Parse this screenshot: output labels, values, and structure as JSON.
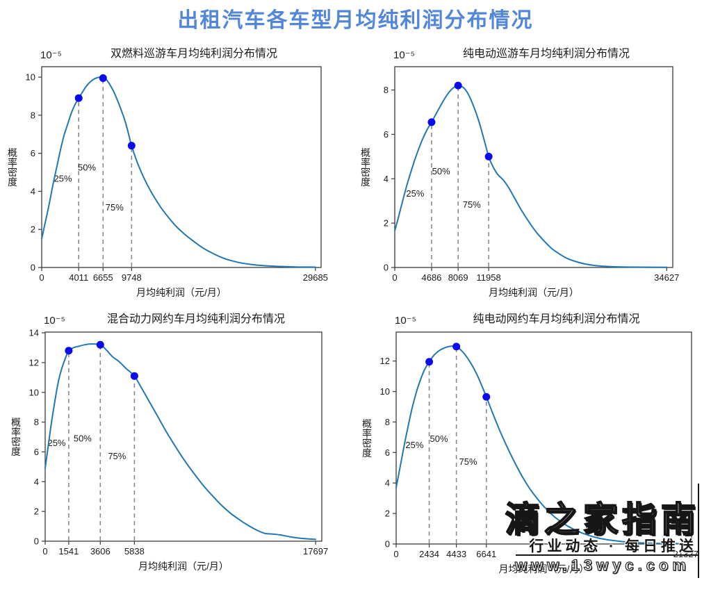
{
  "page": {
    "title": "出租汽车各车型月均纯利润分布情况",
    "title_color": "#5286d8"
  },
  "watermark": {
    "brand": "滴之家指南",
    "tagline": "行业动态 · 每日推送",
    "url": "www.13wyc.com"
  },
  "colors": {
    "curve": "#1f77b4",
    "marker": "#0b0bee",
    "dashed": "#8a8a8a",
    "axis": "#3a3a3a",
    "text": "#1a1a1a"
  },
  "chart_data": [
    {
      "id": "dual-fuel-cruise-taxi",
      "type": "line",
      "title": "双燃料巡游车月均纯利润分布情况",
      "offset_text": "10⁻⁵",
      "xlabel": "月均纯利润（元/月）",
      "ylabel": "概率密度",
      "xticks": [
        0,
        4011,
        6655,
        9748,
        29685
      ],
      "yticks": [
        0,
        2,
        4,
        6,
        8,
        10
      ],
      "xlim": [
        0,
        30300
      ],
      "ylim": [
        0,
        10.55
      ],
      "quartiles": [
        {
          "label": "25%",
          "x": 4011,
          "y": 8.9,
          "label_x": 2300,
          "label_y": 4.5
        },
        {
          "label": "50%",
          "x": 6655,
          "y": 9.95,
          "label_x": 4900,
          "label_y": 5.1
        },
        {
          "label": "75%",
          "x": 9748,
          "y": 6.4,
          "label_x": 7900,
          "label_y": 3.0
        }
      ],
      "curve": [
        [
          0,
          1.5
        ],
        [
          400,
          2.4
        ],
        [
          800,
          3.3
        ],
        [
          1200,
          4.3
        ],
        [
          1600,
          5.2
        ],
        [
          2000,
          6.1
        ],
        [
          2400,
          6.9
        ],
        [
          2800,
          7.5
        ],
        [
          3200,
          8.1
        ],
        [
          3600,
          8.55
        ],
        [
          4011,
          8.9
        ],
        [
          4400,
          9.2
        ],
        [
          4800,
          9.5
        ],
        [
          5200,
          9.72
        ],
        [
          5600,
          9.88
        ],
        [
          6000,
          9.97
        ],
        [
          6400,
          10.0
        ],
        [
          6655,
          9.97
        ],
        [
          7000,
          9.88
        ],
        [
          7400,
          9.6
        ],
        [
          7800,
          9.25
        ],
        [
          8200,
          8.8
        ],
        [
          8600,
          8.3
        ],
        [
          9100,
          7.6
        ],
        [
          9748,
          6.4
        ],
        [
          10300,
          5.6
        ],
        [
          10900,
          4.9
        ],
        [
          11500,
          4.3
        ],
        [
          12200,
          3.7
        ],
        [
          13000,
          3.1
        ],
        [
          13800,
          2.6
        ],
        [
          14600,
          2.15
        ],
        [
          15500,
          1.75
        ],
        [
          16400,
          1.4
        ],
        [
          17400,
          1.05
        ],
        [
          18400,
          0.78
        ],
        [
          19400,
          0.55
        ],
        [
          20400,
          0.38
        ],
        [
          21500,
          0.25
        ],
        [
          22700,
          0.16
        ],
        [
          24000,
          0.1
        ],
        [
          25500,
          0.06
        ],
        [
          27500,
          0.03
        ],
        [
          29685,
          0.02
        ]
      ]
    },
    {
      "id": "electric-cruise-taxi",
      "type": "line",
      "title": "纯电动巡游车月均纯利润分布情况",
      "offset_text": "10⁻⁵",
      "xlabel": "月均纯利润（元/月）",
      "ylabel": "概率密度",
      "xticks": [
        0,
        4686,
        8069,
        11958,
        34627
      ],
      "yticks": [
        0,
        2,
        4,
        6,
        8
      ],
      "xlim": [
        0,
        35400
      ],
      "ylim": [
        0,
        9.05
      ],
      "quartiles": [
        {
          "label": "25%",
          "x": 4686,
          "y": 6.55,
          "label_x": 2600,
          "label_y": 3.2
        },
        {
          "label": "50%",
          "x": 8069,
          "y": 8.2,
          "label_x": 5900,
          "label_y": 4.2
        },
        {
          "label": "75%",
          "x": 11958,
          "y": 5.0,
          "label_x": 9800,
          "label_y": 2.7
        }
      ],
      "curve": [
        [
          0,
          1.65
        ],
        [
          500,
          2.3
        ],
        [
          1000,
          3.0
        ],
        [
          1500,
          3.65
        ],
        [
          2000,
          4.25
        ],
        [
          2500,
          4.8
        ],
        [
          3000,
          5.3
        ],
        [
          3500,
          5.75
        ],
        [
          4100,
          6.2
        ],
        [
          4686,
          6.55
        ],
        [
          5300,
          6.95
        ],
        [
          6000,
          7.4
        ],
        [
          6700,
          7.8
        ],
        [
          7400,
          8.08
        ],
        [
          8069,
          8.2
        ],
        [
          8700,
          8.12
        ],
        [
          9300,
          7.85
        ],
        [
          10000,
          7.3
        ],
        [
          10700,
          6.6
        ],
        [
          11300,
          5.85
        ],
        [
          11958,
          5.0
        ],
        [
          12500,
          4.55
        ],
        [
          13100,
          4.2
        ],
        [
          13800,
          3.95
        ],
        [
          14500,
          3.6
        ],
        [
          15300,
          3.1
        ],
        [
          16100,
          2.6
        ],
        [
          17000,
          2.1
        ],
        [
          18000,
          1.6
        ],
        [
          19000,
          1.2
        ],
        [
          20000,
          0.85
        ],
        [
          21000,
          0.6
        ],
        [
          22000,
          0.4
        ],
        [
          23200,
          0.25
        ],
        [
          24500,
          0.14
        ],
        [
          26000,
          0.07
        ],
        [
          28000,
          0.03
        ],
        [
          31000,
          0.015
        ],
        [
          34627,
          0.01
        ]
      ]
    },
    {
      "id": "hybrid-ride-hailing-car",
      "type": "line",
      "title": "混合动力网约车月均纯利润分布情况",
      "offset_text": "10⁻⁵",
      "xlabel": "月均纯利润（元/月）",
      "ylabel": "概率密度",
      "xticks": [
        0,
        1541,
        3606,
        5838,
        17697
      ],
      "yticks": [
        0,
        2,
        4,
        6,
        8,
        10,
        12,
        14
      ],
      "xlim": [
        0,
        18100
      ],
      "ylim": [
        0,
        14.05
      ],
      "quartiles": [
        {
          "label": "25%",
          "x": 1541,
          "y": 12.8,
          "label_x": 750,
          "label_y": 6.4
        },
        {
          "label": "50%",
          "x": 3606,
          "y": 13.2,
          "label_x": 2450,
          "label_y": 6.7
        },
        {
          "label": "75%",
          "x": 5838,
          "y": 11.1,
          "label_x": 4700,
          "label_y": 5.5
        }
      ],
      "curve": [
        [
          0,
          4.9
        ],
        [
          200,
          6.4
        ],
        [
          400,
          7.9
        ],
        [
          600,
          9.2
        ],
        [
          800,
          10.4
        ],
        [
          1000,
          11.3
        ],
        [
          1250,
          12.1
        ],
        [
          1541,
          12.8
        ],
        [
          1850,
          13.0
        ],
        [
          2200,
          13.1
        ],
        [
          2600,
          13.2
        ],
        [
          3000,
          13.25
        ],
        [
          3606,
          13.2
        ],
        [
          4000,
          12.85
        ],
        [
          4400,
          12.4
        ],
        [
          4800,
          12.1
        ],
        [
          5300,
          11.6
        ],
        [
          5838,
          11.1
        ],
        [
          6300,
          10.3
        ],
        [
          6800,
          9.4
        ],
        [
          7300,
          8.5
        ],
        [
          7900,
          7.4
        ],
        [
          8500,
          6.4
        ],
        [
          9100,
          5.45
        ],
        [
          9700,
          4.6
        ],
        [
          10300,
          3.8
        ],
        [
          10900,
          3.1
        ],
        [
          11500,
          2.45
        ],
        [
          12100,
          1.9
        ],
        [
          12700,
          1.45
        ],
        [
          13300,
          1.05
        ],
        [
          13900,
          0.72
        ],
        [
          14400,
          0.52
        ],
        [
          14900,
          0.48
        ],
        [
          15400,
          0.42
        ],
        [
          16000,
          0.3
        ],
        [
          16700,
          0.2
        ],
        [
          17697,
          0.12
        ]
      ]
    },
    {
      "id": "electric-ride-hailing-car",
      "type": "line",
      "title": "纯电动网约车月均纯利润分布情况",
      "offset_text": "10⁻⁵",
      "xlabel": "月均纯利润（元/月）",
      "ylabel": "概率密度",
      "xticks": [
        0,
        2434,
        4433,
        6641,
        21327
      ],
      "yticks": [
        0,
        2,
        4,
        6,
        8,
        10,
        12
      ],
      "xlim": [
        0,
        21750
      ],
      "ylim": [
        0,
        13.9
      ],
      "quartiles": [
        {
          "label": "25%",
          "x": 2434,
          "y": 11.95,
          "label_x": 1350,
          "label_y": 6.3
        },
        {
          "label": "50%",
          "x": 4433,
          "y": 12.95,
          "label_x": 3150,
          "label_y": 6.7
        },
        {
          "label": "75%",
          "x": 6641,
          "y": 9.65,
          "label_x": 5300,
          "label_y": 5.2
        }
      ],
      "curve": [
        [
          0,
          3.7
        ],
        [
          300,
          5.1
        ],
        [
          600,
          6.5
        ],
        [
          900,
          7.8
        ],
        [
          1200,
          9.0
        ],
        [
          1500,
          10.0
        ],
        [
          1800,
          10.8
        ],
        [
          2100,
          11.45
        ],
        [
          2434,
          11.95
        ],
        [
          2800,
          12.4
        ],
        [
          3200,
          12.7
        ],
        [
          3600,
          12.88
        ],
        [
          4000,
          12.97
        ],
        [
          4433,
          12.95
        ],
        [
          4900,
          12.6
        ],
        [
          5400,
          12.0
        ],
        [
          5900,
          11.2
        ],
        [
          6300,
          10.4
        ],
        [
          6641,
          9.65
        ],
        [
          7100,
          8.6
        ],
        [
          7600,
          7.5
        ],
        [
          8100,
          6.5
        ],
        [
          8700,
          5.4
        ],
        [
          9300,
          4.4
        ],
        [
          9900,
          3.55
        ],
        [
          10500,
          2.85
        ],
        [
          11100,
          2.25
        ],
        [
          11700,
          1.75
        ],
        [
          12400,
          1.3
        ],
        [
          13100,
          0.95
        ],
        [
          13800,
          0.68
        ],
        [
          14600,
          0.45
        ],
        [
          15400,
          0.3
        ],
        [
          16300,
          0.19
        ],
        [
          17300,
          0.11
        ],
        [
          18500,
          0.06
        ],
        [
          20000,
          0.03
        ],
        [
          21327,
          0.02
        ]
      ]
    }
  ]
}
